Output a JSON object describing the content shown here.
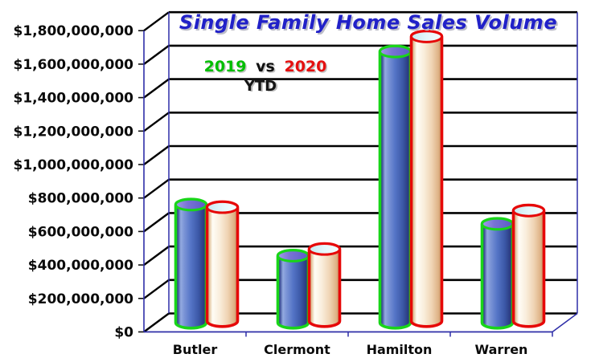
{
  "chart_data": {
    "type": "bar",
    "subtype": "3d-cylinder",
    "title": "Single Family Home Sales Volume",
    "title_color": "#2121C8",
    "legend": {
      "series_a": "2019",
      "series_a_color": "#00BE00",
      "separator": "vs",
      "series_b": "2020",
      "series_b_color": "#E51010",
      "subtitle": "YTD"
    },
    "legend_position": "inside-top-left",
    "grid": true,
    "categories": [
      "Butler",
      "Clermont",
      "Hamilton",
      "Warren"
    ],
    "series": [
      {
        "name": "2019",
        "outline_color": "#19D519",
        "body_style": "blue",
        "values": [
          705000000,
          400000000,
          1620000000,
          590000000
        ]
      },
      {
        "name": "2020",
        "outline_color": "#E60808",
        "body_style": "cream",
        "values": [
          680000000,
          430000000,
          1700000000,
          660000000
        ]
      }
    ],
    "xlabel": "",
    "ylabel": "",
    "ylim": [
      0,
      1800000000
    ],
    "ytick_step": 200000000,
    "ytick_labels": [
      "$0",
      "$200,000,000",
      "$400,000,000",
      "$600,000,000",
      "$800,000,000",
      "$1,000,000,000",
      "$1,200,000,000",
      "$1,400,000,000",
      "$1,600,000,000",
      "$1,800,000,000"
    ],
    "colors": {
      "gridline": "#000000",
      "axis": "#2E2EA8"
    }
  }
}
